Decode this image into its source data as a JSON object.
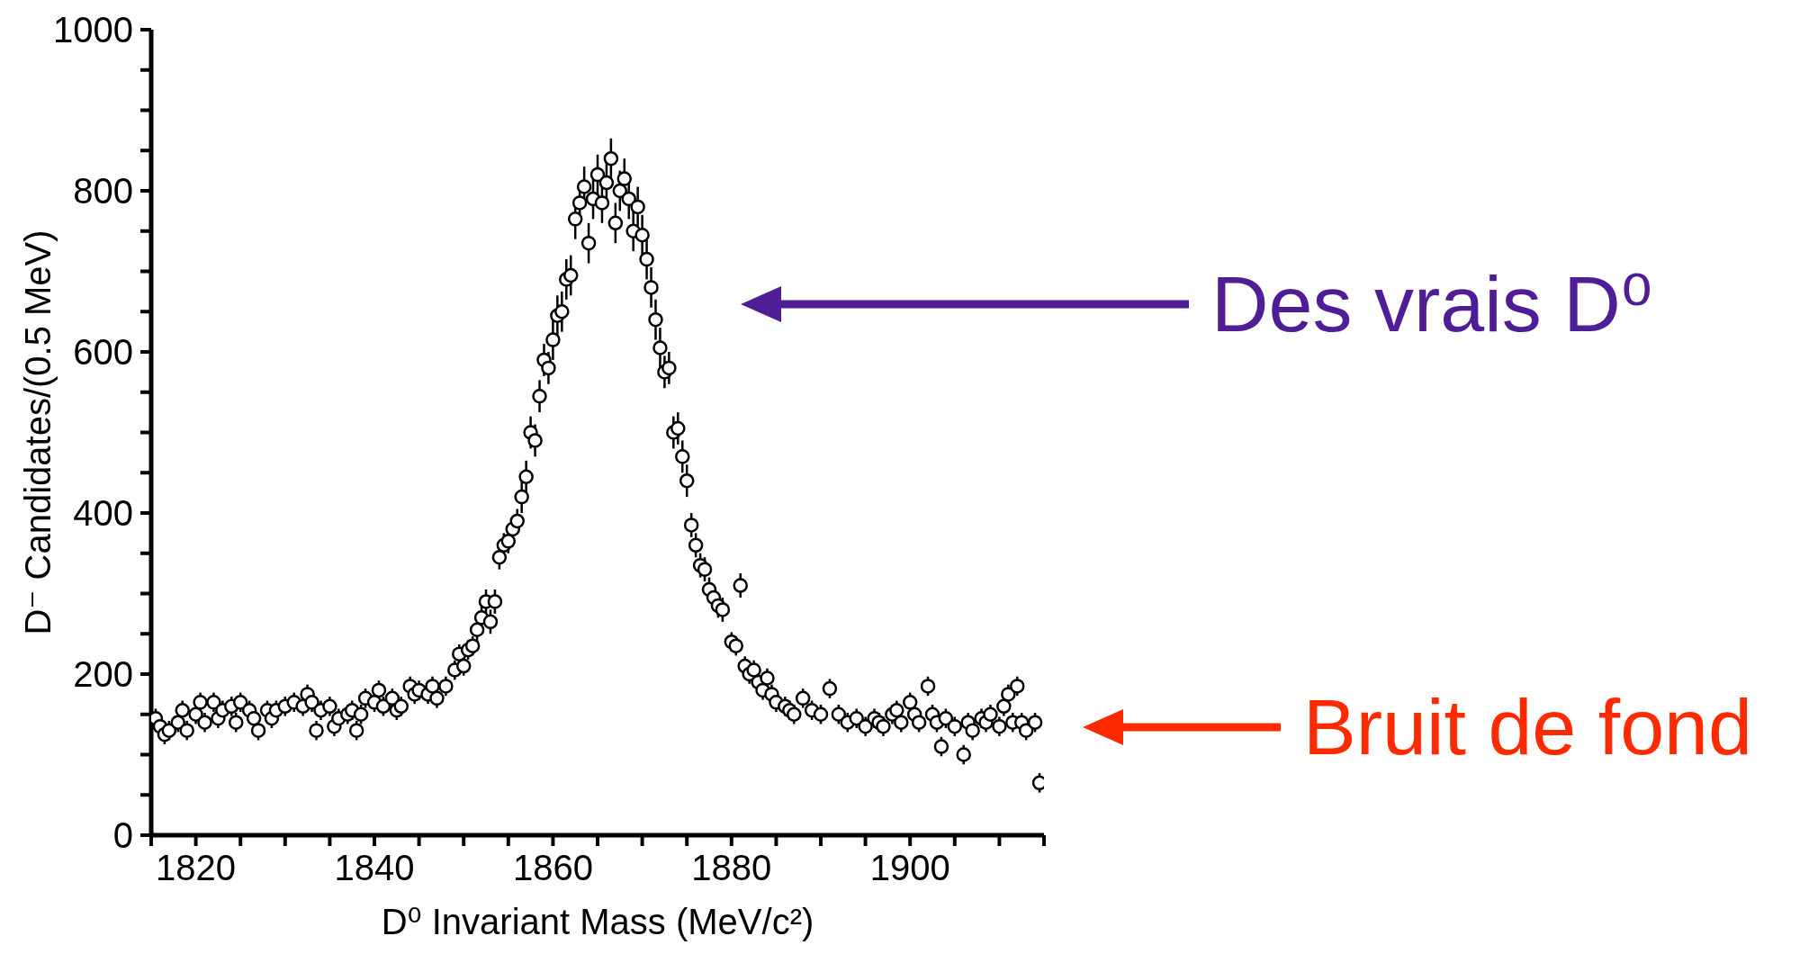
{
  "chart_data": {
    "type": "scatter",
    "xlabel": "D⁰ Invariant Mass (MeV/c²)",
    "ylabel": "D⁻ Candidates/(0.5 MeV)",
    "marker": "circle",
    "x": [
      1815.5,
      1816,
      1816.5,
      1817,
      1818,
      1818.5,
      1819,
      1820,
      1820.5,
      1821,
      1822,
      1822.5,
      1823,
      1824,
      1824.5,
      1825,
      1826,
      1826.5,
      1827,
      1828,
      1828.5,
      1829,
      1830,
      1831,
      1832,
      1832.5,
      1833,
      1833.5,
      1834,
      1835,
      1835.5,
      1836,
      1837,
      1837.5,
      1838,
      1838.5,
      1839,
      1840,
      1840.5,
      1841,
      1842,
      1842.5,
      1843,
      1844,
      1844.5,
      1845,
      1846,
      1846.5,
      1847,
      1848,
      1849,
      1849.5,
      1850,
      1850.5,
      1851,
      1851.5,
      1852,
      1852.5,
      1853,
      1853.5,
      1854,
      1854.5,
      1855,
      1855.5,
      1856,
      1856.5,
      1857,
      1857.5,
      1858,
      1858.5,
      1859,
      1859.5,
      1860,
      1860.5,
      1861,
      1861.5,
      1862,
      1862.5,
      1863,
      1863.5,
      1864,
      1864.5,
      1865,
      1865.5,
      1866,
      1866.5,
      1867,
      1867.5,
      1868,
      1868.5,
      1869,
      1869.5,
      1870,
      1870.5,
      1871,
      1871.5,
      1872,
      1872.5,
      1873,
      1873.5,
      1874,
      1874.5,
      1875,
      1875.5,
      1876,
      1876.5,
      1877,
      1877.5,
      1878,
      1878.5,
      1879,
      1880,
      1880.5,
      1881,
      1881.5,
      1882,
      1882.5,
      1883,
      1883.5,
      1884,
      1884.5,
      1885,
      1886,
      1886.5,
      1887,
      1888,
      1889,
      1890,
      1891,
      1892,
      1893,
      1894,
      1895,
      1896,
      1896.5,
      1897,
      1898,
      1898.5,
      1899,
      1900,
      1900.5,
      1901,
      1902,
      1902.5,
      1903,
      1903.5,
      1904,
      1905,
      1906,
      1906.5,
      1907,
      1908,
      1908.5,
      1909,
      1910,
      1910.5,
      1911,
      1911.5,
      1912,
      1912.5,
      1913,
      1914,
      1914.5
    ],
    "values": [
      145,
      135,
      125,
      130,
      140,
      155,
      130,
      150,
      165,
      140,
      165,
      145,
      155,
      160,
      140,
      165,
      155,
      145,
      130,
      155,
      145,
      155,
      160,
      165,
      160,
      175,
      165,
      130,
      155,
      160,
      135,
      145,
      150,
      155,
      130,
      150,
      170,
      165,
      180,
      160,
      170,
      155,
      160,
      185,
      175,
      180,
      175,
      185,
      170,
      185,
      205,
      225,
      210,
      230,
      235,
      255,
      270,
      290,
      265,
      290,
      345,
      360,
      365,
      380,
      390,
      420,
      445,
      500,
      490,
      545,
      590,
      580,
      615,
      645,
      650,
      690,
      695,
      765,
      785,
      805,
      735,
      790,
      820,
      785,
      810,
      840,
      760,
      800,
      815,
      790,
      750,
      780,
      745,
      715,
      680,
      640,
      605,
      575,
      580,
      500,
      505,
      470,
      440,
      385,
      360,
      335,
      330,
      305,
      295,
      285,
      280,
      240,
      235,
      310,
      210,
      200,
      205,
      190,
      180,
      195,
      175,
      165,
      160,
      155,
      150,
      170,
      155,
      150,
      182,
      150,
      140,
      145,
      135,
      145,
      140,
      135,
      150,
      155,
      140,
      165,
      150,
      140,
      185,
      150,
      140,
      110,
      145,
      135,
      100,
      140,
      130,
      145,
      140,
      150,
      135,
      160,
      175,
      140,
      185,
      140,
      130,
      140,
      65
    ],
    "errors": [
      12,
      12,
      12,
      12,
      12,
      12,
      12,
      12,
      12,
      12,
      12,
      12,
      12,
      12,
      12,
      12,
      12,
      12,
      12,
      12,
      12,
      12,
      12,
      12,
      12,
      12,
      12,
      12,
      12,
      12,
      12,
      12,
      12,
      12,
      12,
      12,
      12,
      12,
      12,
      12,
      12,
      12,
      12,
      12,
      12,
      12,
      12,
      12,
      12,
      12,
      12,
      12,
      12,
      12,
      12,
      15,
      15,
      15,
      15,
      15,
      15,
      15,
      15,
      15,
      15,
      20,
      20,
      20,
      20,
      20,
      20,
      20,
      25,
      25,
      25,
      25,
      25,
      25,
      25,
      25,
      25,
      25,
      25,
      25,
      25,
      25,
      25,
      25,
      25,
      25,
      25,
      25,
      25,
      25,
      25,
      25,
      25,
      20,
      20,
      20,
      20,
      20,
      20,
      15,
      15,
      15,
      15,
      15,
      15,
      15,
      15,
      12,
      12,
      15,
      12,
      12,
      12,
      12,
      12,
      12,
      12,
      12,
      12,
      12,
      12,
      12,
      12,
      12,
      12,
      12,
      12,
      12,
      12,
      12,
      12,
      12,
      12,
      12,
      12,
      12,
      12,
      12,
      12,
      12,
      12,
      12,
      12,
      12,
      12,
      12,
      12,
      12,
      12,
      12,
      12,
      12,
      12,
      12,
      12,
      12,
      12,
      12,
      12
    ],
    "xlim": [
      1815,
      1915
    ],
    "xticks": [
      {
        "value": 1815,
        "label": null
      },
      1820,
      {
        "value": 1825,
        "label": null
      },
      {
        "value": 1830,
        "label": null
      },
      {
        "value": 1835,
        "label": null
      },
      1840,
      {
        "value": 1845,
        "label": null
      },
      {
        "value": 1850,
        "label": null
      },
      {
        "value": 1855,
        "label": null
      },
      1860,
      {
        "value": 1865,
        "label": null
      },
      {
        "value": 1870,
        "label": null
      },
      {
        "value": 1875,
        "label": null
      },
      1880,
      {
        "value": 1885,
        "label": null
      },
      {
        "value": 1890,
        "label": null
      },
      {
        "value": 1895,
        "label": null
      },
      1900,
      {
        "value": 1905,
        "label": null
      },
      {
        "value": 1910,
        "label": null
      },
      {
        "value": 1915,
        "label": null
      }
    ],
    "ylim": [
      0,
      1000
    ],
    "yticks": [
      0,
      {
        "value": 50,
        "label": null
      },
      {
        "value": 100,
        "label": null
      },
      {
        "value": 150,
        "label": null
      },
      200,
      {
        "value": 250,
        "label": null
      },
      {
        "value": 300,
        "label": null
      },
      {
        "value": 350,
        "label": null
      },
      400,
      {
        "value": 450,
        "label": null
      },
      {
        "value": 500,
        "label": null
      },
      {
        "value": 550,
        "label": null
      },
      600,
      {
        "value": 650,
        "label": null
      },
      {
        "value": 700,
        "label": null
      },
      {
        "value": 750,
        "label": null
      },
      800,
      {
        "value": 850,
        "label": null
      },
      {
        "value": 900,
        "label": null
      },
      {
        "value": 950,
        "label": null
      },
      1000
    ],
    "annotations": [
      "Des vrais D⁰",
      "Bruit de fond"
    ]
  }
}
